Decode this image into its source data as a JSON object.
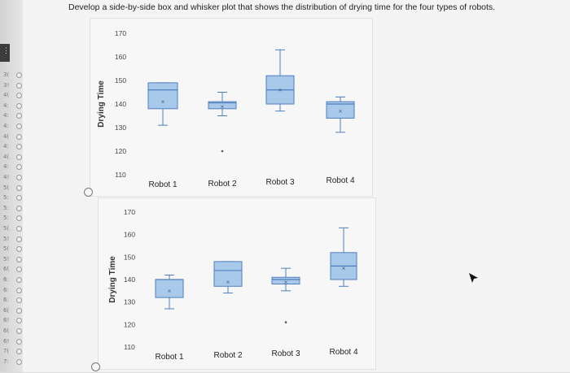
{
  "question": {
    "text": "Develop a side-by-side box and whisker plot that shows the distribution of drying time for the four types of robots."
  },
  "sidebar": {
    "row_labels": [
      "3(",
      "3!",
      "4(",
      "4:",
      "4:",
      "4:",
      "4(",
      "4:",
      "4(",
      "4:",
      "4!",
      "5(",
      "5:",
      "5:",
      "5:",
      "5(",
      "5!",
      "5(",
      "5!",
      "6(",
      "6:",
      "6:",
      "6:",
      "6(",
      "6!",
      "6(",
      "6!",
      "7(",
      "7:"
    ]
  },
  "icons": {
    "radio_a": "radio-circle",
    "radio_b": "radio-circle",
    "pointer": "arrow-cursor",
    "sidebar_tab": "bookmark-tab"
  },
  "chart_data": [
    {
      "type": "box",
      "option": "A",
      "ylabel": "Drying Time",
      "yticks": [
        170,
        160,
        150,
        140,
        130,
        120,
        110
      ],
      "ylim": [
        110,
        170
      ],
      "categories": [
        "Robot 1",
        "Robot 2",
        "Robot 3",
        "Robot 4"
      ],
      "boxes": [
        {
          "whisker_low": 131,
          "q1": 138,
          "median": 146,
          "q3": 149,
          "whisker_high": 149,
          "mean": 141,
          "outliers": []
        },
        {
          "whisker_low": 135,
          "q1": 138,
          "median": 140.5,
          "q3": 141,
          "whisker_high": 145,
          "mean": 139,
          "outliers": [
            120
          ]
        },
        {
          "whisker_low": 137,
          "q1": 140,
          "median": 146,
          "q3": 152,
          "whisker_high": 163,
          "mean": 146,
          "outliers": []
        },
        {
          "whisker_low": 128,
          "q1": 134,
          "median": 140,
          "q3": 141,
          "whisker_high": 143,
          "mean": 137,
          "outliers": []
        }
      ],
      "box_color": "#a9c9ea",
      "edge_color": "#4f7fbf"
    },
    {
      "type": "box",
      "option": "B",
      "ylabel": "Drying Time",
      "yticks": [
        170,
        160,
        150,
        140,
        130,
        120,
        110
      ],
      "ylim": [
        110,
        170
      ],
      "categories": [
        "Robot 1",
        "Robot 2",
        "Robot 3",
        "Robot 4"
      ],
      "boxes": [
        {
          "whisker_low": 127,
          "q1": 132,
          "median": 140,
          "q3": 140,
          "whisker_high": 142,
          "mean": 135,
          "outliers": []
        },
        {
          "whisker_low": 134,
          "q1": 137,
          "median": 144,
          "q3": 148,
          "whisker_high": 148,
          "mean": 139,
          "outliers": []
        },
        {
          "whisker_low": 135,
          "q1": 138,
          "median": 140,
          "q3": 141,
          "whisker_high": 145,
          "mean": 139,
          "outliers": [
            121
          ]
        },
        {
          "whisker_low": 137,
          "q1": 140,
          "median": 146,
          "q3": 152,
          "whisker_high": 163,
          "mean": 145,
          "outliers": []
        }
      ],
      "box_color": "#a9c9ea",
      "edge_color": "#4f7fbf"
    }
  ]
}
